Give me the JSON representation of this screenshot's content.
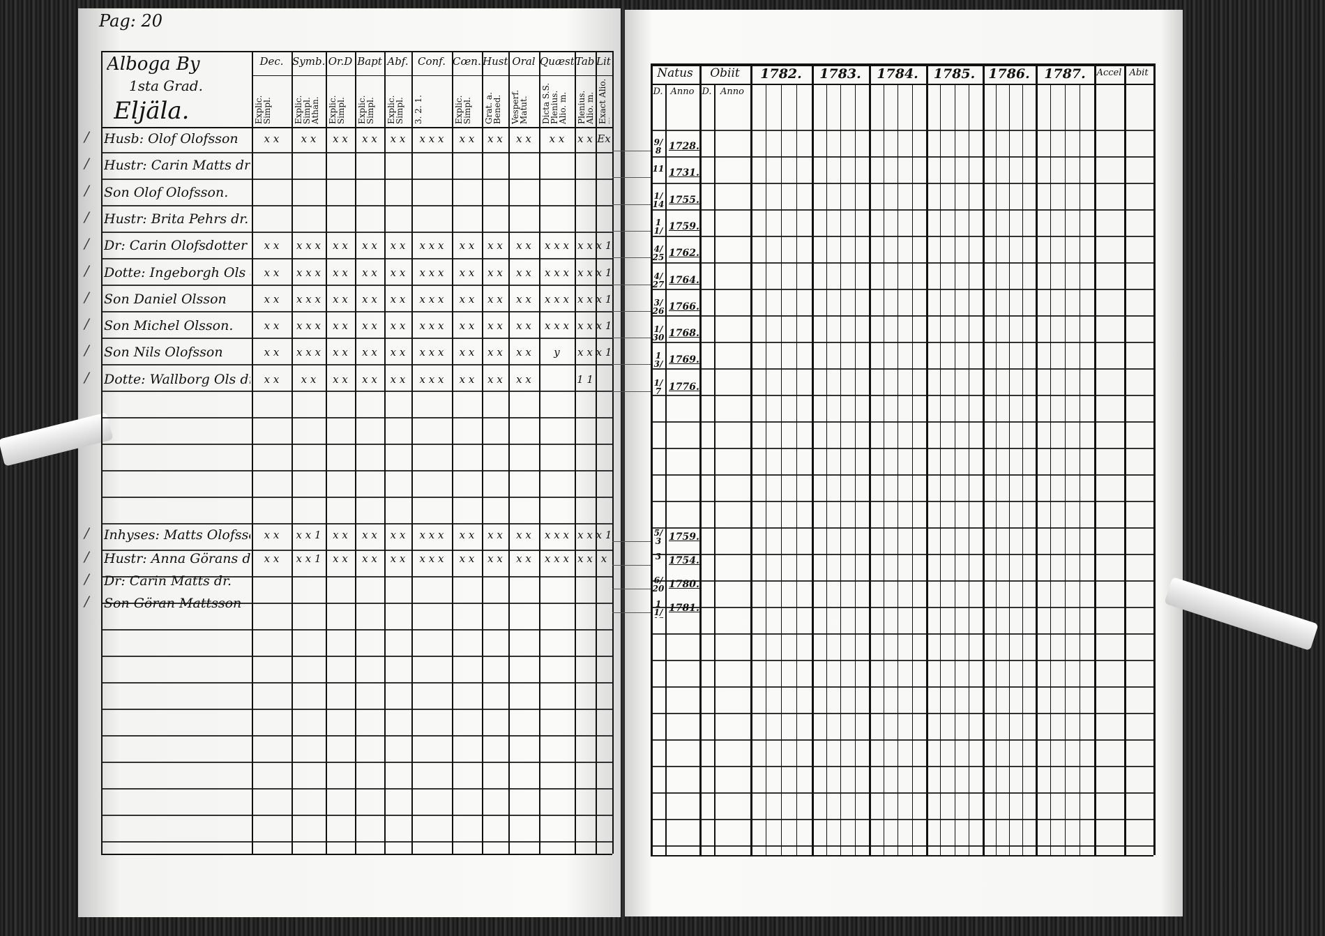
{
  "page_label": "Pag: 20",
  "left": {
    "village_title": "Alboga By",
    "grade": "1sta Grad.",
    "farm": "Eljäla.",
    "columns": [
      {
        "head": "Dec.",
        "sub": "Explic. Simpl."
      },
      {
        "head": "Symb.",
        "sub": "Explic. Simpl. Athan."
      },
      {
        "head": "Or.D",
        "sub": "Explic. Simpl."
      },
      {
        "head": "Bapt",
        "sub": "Explic. Simpl."
      },
      {
        "head": "Abf.",
        "sub": "Explic. Simpl."
      },
      {
        "head": "Conf.",
        "sub": "3. 2. 1."
      },
      {
        "head": "Cœn.D",
        "sub": "Explic. Simpl."
      },
      {
        "head": "Hust.",
        "sub": "Grat. a. Bened."
      },
      {
        "head": "Oral",
        "sub": "Vesperf. Matut."
      },
      {
        "head": "Quæst.",
        "sub": "Dicta S.S. Plenius. Alio. m."
      },
      {
        "head": "Tabac",
        "sub": "Plenius. Alio. m."
      },
      {
        "head": "Lit.",
        "sub": "Exact Alio. m."
      }
    ],
    "persons": [
      {
        "name": "Husb: Olof Olofsson",
        "marks": [
          "x x",
          "x x",
          "x x",
          "x x",
          "x x",
          "x x x",
          "x x",
          "x x",
          "x x",
          "x x",
          "x x",
          "Ex"
        ]
      },
      {
        "name": "Hustr: Carin Matts dr.",
        "marks": []
      },
      {
        "name": "Son Olof Olofsson.",
        "marks": []
      },
      {
        "name": "Hustr: Brita Pehrs dr.",
        "marks": []
      },
      {
        "name": "Dr: Carin Olofsdotter",
        "marks": [
          "x x",
          "x x x",
          "x x",
          "x x",
          "x x",
          "x x x",
          "x x",
          "x x",
          "x x",
          "x x x",
          "x x",
          "x 1"
        ]
      },
      {
        "name": "Dotte: Ingeborgh Ols dr.",
        "marks": [
          "x x",
          "x x x",
          "x x",
          "x x",
          "x x",
          "x x x",
          "x x",
          "x x",
          "x x",
          "x x x",
          "x x",
          "x 1"
        ]
      },
      {
        "name": "Son Daniel Olsson",
        "marks": [
          "x x",
          "x x x",
          "x x",
          "x x",
          "x x",
          "x x x",
          "x x",
          "x x",
          "x x",
          "x x x",
          "x x",
          "x 1"
        ]
      },
      {
        "name": "Son Michel Olsson.",
        "marks": [
          "x x",
          "x x x",
          "x x",
          "x x",
          "x x",
          "x x x",
          "x x",
          "x x",
          "x x",
          "x x x",
          "x x",
          "x 1"
        ]
      },
      {
        "name": "Son Nils Olofsson",
        "marks": [
          "x x",
          "x x x",
          "x x",
          "x x",
          "x x",
          "x x x",
          "x x",
          "x x",
          "x x",
          "y",
          "x x",
          "x 1"
        ]
      },
      {
        "name": "Dotte: Wallborg Ols dr.",
        "marks": [
          "x x",
          "x x",
          "x x",
          "x x",
          "x x",
          "x x x",
          "x x",
          "x x",
          "x x",
          "",
          "1 1",
          ""
        ]
      }
    ],
    "persons2": [
      {
        "name": "Inhyses: Matts Olofsson",
        "marks": [
          "x x",
          "x x 1",
          "x x",
          "x x",
          "x x",
          "x x x",
          "x x",
          "x x",
          "x x",
          "x x x",
          "x x",
          "x 1"
        ]
      },
      {
        "name": "Hustr: Anna Görans dr.",
        "marks": [
          "x x",
          "x x 1",
          "x x",
          "x x",
          "x x",
          "x x x",
          "x x",
          "x x",
          "x x",
          "x x x",
          "x x",
          "x"
        ]
      },
      {
        "name": "Dr: Carin Matts dr.",
        "marks": []
      },
      {
        "name": "Son Göran Mattsson",
        "marks": []
      }
    ]
  },
  "right": {
    "natus_label": "Natus",
    "obiit_label": "Obiit",
    "day_label": "D.",
    "anno_label": "Anno",
    "years": [
      "1782.",
      "1783.",
      "1784.",
      "1785.",
      "1786.",
      "1787."
    ],
    "accel_label": "Accel",
    "abit_label": "Abit",
    "births": [
      {
        "day": "9/8",
        "year": "1728."
      },
      {
        "day": "11",
        "year": "1731."
      },
      {
        "day": "1/14",
        "year": "1755."
      },
      {
        "day": "11/14",
        "year": "1759."
      },
      {
        "day": "4/25",
        "year": "1762."
      },
      {
        "day": "4/27",
        "year": "1764."
      },
      {
        "day": "3/26",
        "year": "1766."
      },
      {
        "day": "1/30",
        "year": "1768."
      },
      {
        "day": "13/3",
        "year": "1769."
      },
      {
        "day": "1/7",
        "year": "1776."
      }
    ],
    "births2": [
      {
        "day": "5/3",
        "year": "1759."
      },
      {
        "day": "3",
        "year": "1754."
      },
      {
        "day": "6/20",
        "year": "1780."
      },
      {
        "day": "11/13",
        "year": "1781."
      }
    ]
  }
}
